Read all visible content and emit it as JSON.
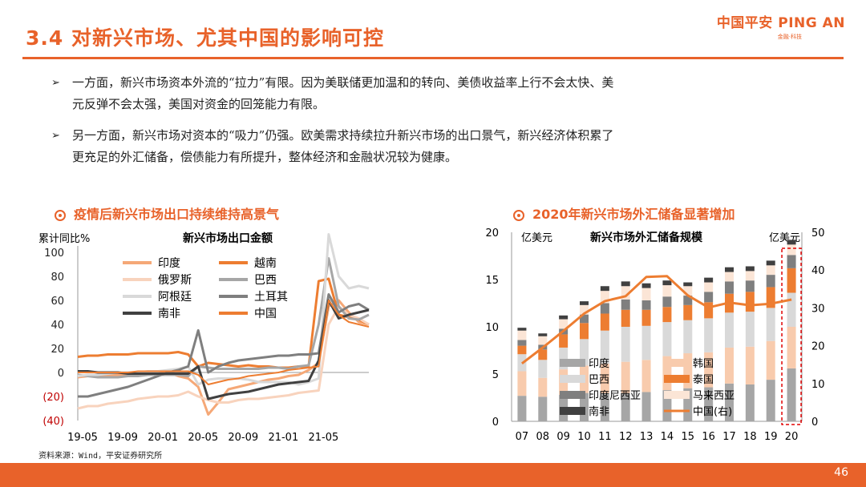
{
  "header": {
    "title": "3.4 对新兴市场、尤其中国的影响可控",
    "logo_main": "中国平安 PING AN",
    "logo_sub": "金融·科技"
  },
  "bullets": [
    {
      "line1": "一方面，新兴市场资本外流的“拉力”有限。因为美联储更加温和的转向、美债收益率上行不会太快、美",
      "line2": "元反弹不会太强，美国对资金的回笼能力有限。"
    },
    {
      "line1": "另一方面，新兴市场对资本的“吸力”仍强。欧美需求持续拉升新兴市场的出口景气，新兴经济体积累了",
      "line2": "更充足的外汇储备，偿债能力有所提升，整体经济和金融状况较为健康。"
    }
  ],
  "left_section_title": "疫情后新兴市场出口持续维持高景气",
  "right_section_title": "2020年新兴市场外汇储备显著增加",
  "source": "资料来源：Wind，平安证券研究所",
  "page_number": "46",
  "colors": {
    "accent": "#e8622a"
  },
  "chart_data": [
    {
      "type": "line",
      "title": "新兴市场出口金额",
      "ylabel": "累计同比%",
      "ylim": [
        -40,
        100
      ],
      "yticks": [
        "100",
        "80",
        "60",
        "40",
        "20",
        "0",
        "(20)",
        "(40)"
      ],
      "xticks": [
        "19-05",
        "19-09",
        "20-01",
        "20-05",
        "20-09",
        "21-01",
        "21-05"
      ],
      "series": [
        {
          "name": "印度",
          "color": "#f5a877",
          "width": 3,
          "values": [
            -4,
            -3,
            -3,
            -2,
            -2,
            -2,
            -1,
            -1,
            -1,
            0,
            -3,
            -5,
            -12,
            -35,
            -25,
            -14,
            -12,
            -10,
            -8,
            -6,
            -5,
            -3,
            -2,
            2,
            8,
            55,
            60,
            50,
            42,
            40
          ]
        },
        {
          "name": "越南",
          "color": "#ed7d31",
          "width": 3,
          "values": [
            13,
            14,
            14,
            15,
            15,
            15,
            16,
            16,
            16,
            16,
            17,
            15,
            5,
            8,
            7,
            6,
            5,
            6,
            5,
            5,
            4,
            4,
            5,
            5,
            76,
            78,
            48,
            46,
            44,
            40
          ]
        },
        {
          "name": "俄罗斯",
          "color": "#f8d3bd",
          "width": 3,
          "values": [
            -30,
            -28,
            -28,
            -26,
            -25,
            -24,
            -22,
            -21,
            -20,
            -20,
            -19,
            -16,
            -20,
            -23,
            -25,
            -25,
            -23,
            -22,
            -22,
            -21,
            -20,
            -19,
            -17,
            -16,
            -15,
            40,
            55,
            48,
            45,
            40
          ]
        },
        {
          "name": "巴西",
          "color": "#a6a6a6",
          "width": 3,
          "values": [
            -2,
            -3,
            -4,
            -4,
            -4,
            -3,
            -3,
            -2,
            -2,
            -2,
            -2,
            -3,
            5,
            4,
            3,
            3,
            3,
            3,
            3,
            4,
            4,
            3,
            5,
            6,
            40,
            95,
            55,
            45,
            44,
            48
          ]
        },
        {
          "name": "阿根廷",
          "color": "#d9d9d9",
          "width": 3,
          "values": [
            -3,
            -2,
            -2,
            -1,
            0,
            0,
            0,
            1,
            1,
            2,
            3,
            5,
            -10,
            -6,
            -5,
            -5,
            -5,
            -6,
            -8,
            -8,
            -8,
            -8,
            -10,
            -8,
            -5,
            115,
            80,
            70,
            72,
            70
          ]
        },
        {
          "name": "土耳其",
          "color": "#7f7f7f",
          "width": 3,
          "values": [
            -20,
            -20,
            -18,
            -16,
            -14,
            -12,
            -9,
            -6,
            -3,
            0,
            2,
            5,
            35,
            0,
            5,
            8,
            10,
            11,
            12,
            13,
            14,
            14,
            15,
            15,
            16,
            65,
            50,
            55,
            57,
            52
          ]
        },
        {
          "name": "南非",
          "color": "#404040",
          "width": 3,
          "values": [
            1,
            1,
            0,
            0,
            0,
            -1,
            -1,
            -1,
            -1,
            -1,
            -1,
            -1,
            5,
            -22,
            -20,
            -18,
            -17,
            -16,
            -14,
            -12,
            -10,
            -9,
            -8,
            -7,
            10,
            60,
            45,
            48,
            50,
            52
          ]
        },
        {
          "name": "中国",
          "color": "#ed7d31",
          "width": 2,
          "values": [
            0,
            0,
            0,
            0,
            0,
            0,
            1,
            1,
            1,
            1,
            1,
            1,
            -2,
            -10,
            -8,
            -6,
            -5,
            -3,
            -2,
            -1,
            0,
            2,
            3,
            4,
            5,
            60,
            48,
            42,
            40,
            38
          ]
        }
      ]
    },
    {
      "type": "bar",
      "stacked": true,
      "title": "新兴市场外汇储备规模",
      "ylabel_left": "亿美元",
      "ylabel_right": "亿美元",
      "ylim_left": [
        0,
        20
      ],
      "ylim_right": [
        0,
        50
      ],
      "yticks_left": [
        "0",
        "5",
        "10",
        "15",
        "20"
      ],
      "yticks_right": [
        "0",
        "10",
        "20",
        "30",
        "40",
        "50"
      ],
      "categories": [
        "07",
        "08",
        "09",
        "10",
        "11",
        "12",
        "13",
        "14",
        "15",
        "16",
        "17",
        "18",
        "19",
        "20"
      ],
      "series": [
        {
          "name": "印度",
          "color": "#a6a6a6",
          "values": [
            2.7,
            2.6,
            2.8,
            3.0,
            3.0,
            3.0,
            3.1,
            3.3,
            3.5,
            3.6,
            4.0,
            3.9,
            4.4,
            5.6
          ]
        },
        {
          "name": "韩国",
          "color": "#f8cbad",
          "values": [
            2.6,
            2.0,
            2.7,
            2.9,
            3.1,
            3.3,
            3.4,
            3.6,
            3.7,
            3.7,
            3.8,
            4.0,
            4.1,
            4.4
          ]
        },
        {
          "name": "巴西",
          "color": "#d9d9d9",
          "values": [
            1.8,
            1.9,
            2.3,
            2.8,
            3.5,
            3.7,
            3.6,
            3.6,
            3.5,
            3.6,
            3.7,
            3.7,
            3.5,
            3.6
          ]
        },
        {
          "name": "泰国",
          "color": "#ed7d31",
          "values": [
            0.9,
            1.1,
            1.4,
            1.7,
            1.8,
            1.8,
            1.7,
            1.6,
            1.6,
            1.7,
            2.0,
            2.1,
            2.2,
            2.6
          ]
        },
        {
          "name": "印度尼西亚",
          "color": "#7f7f7f",
          "values": [
            0.6,
            0.5,
            0.6,
            0.9,
            1.1,
            1.1,
            1.0,
            1.1,
            1.0,
            1.1,
            1.3,
            1.2,
            1.3,
            1.4
          ]
        },
        {
          "name": "马来西亚",
          "color": "#fbe5d6",
          "values": [
            1.0,
            0.9,
            1.0,
            1.0,
            1.3,
            1.4,
            1.3,
            1.2,
            1.0,
            1.0,
            1.0,
            1.0,
            1.0,
            1.1
          ]
        },
        {
          "name": "南非",
          "color": "#404040",
          "values": [
            0.3,
            0.3,
            0.4,
            0.4,
            0.5,
            0.5,
            0.5,
            0.5,
            0.4,
            0.5,
            0.5,
            0.5,
            0.5,
            0.5
          ]
        }
      ],
      "line_series": {
        "name": "中国(右)",
        "axis": "right",
        "color": "#ed7d31",
        "values": [
          15.3,
          19.5,
          23.9,
          28.5,
          31.8,
          33.1,
          38.2,
          38.4,
          33.3,
          30.1,
          31.4,
          30.7,
          31.1,
          32.2
        ]
      },
      "highlighted_category": "20"
    }
  ]
}
